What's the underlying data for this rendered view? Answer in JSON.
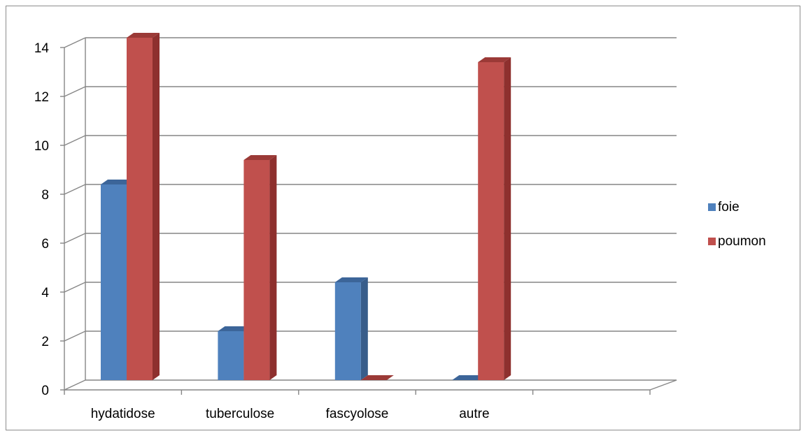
{
  "chart_data": {
    "type": "bar",
    "style": "3d-clustered-column",
    "categories": [
      "hydatidose",
      "tuberculose",
      "fascyolose",
      "autre",
      ""
    ],
    "series": [
      {
        "name": "foie",
        "values": [
          8,
          2,
          4,
          0,
          null
        ],
        "color": "#4f81bd",
        "side_color": "#385d8a",
        "top_color": "#3c6599"
      },
      {
        "name": "poumon",
        "values": [
          14,
          9,
          0,
          13,
          null
        ],
        "color": "#c0504d",
        "side_color": "#8e302e",
        "top_color": "#9b3a37"
      }
    ],
    "y_ticks": [
      "0",
      "2",
      "4",
      "6",
      "8",
      "10",
      "12",
      "14"
    ],
    "ylim": [
      0,
      14
    ],
    "grid": true,
    "legend_position": "right"
  }
}
